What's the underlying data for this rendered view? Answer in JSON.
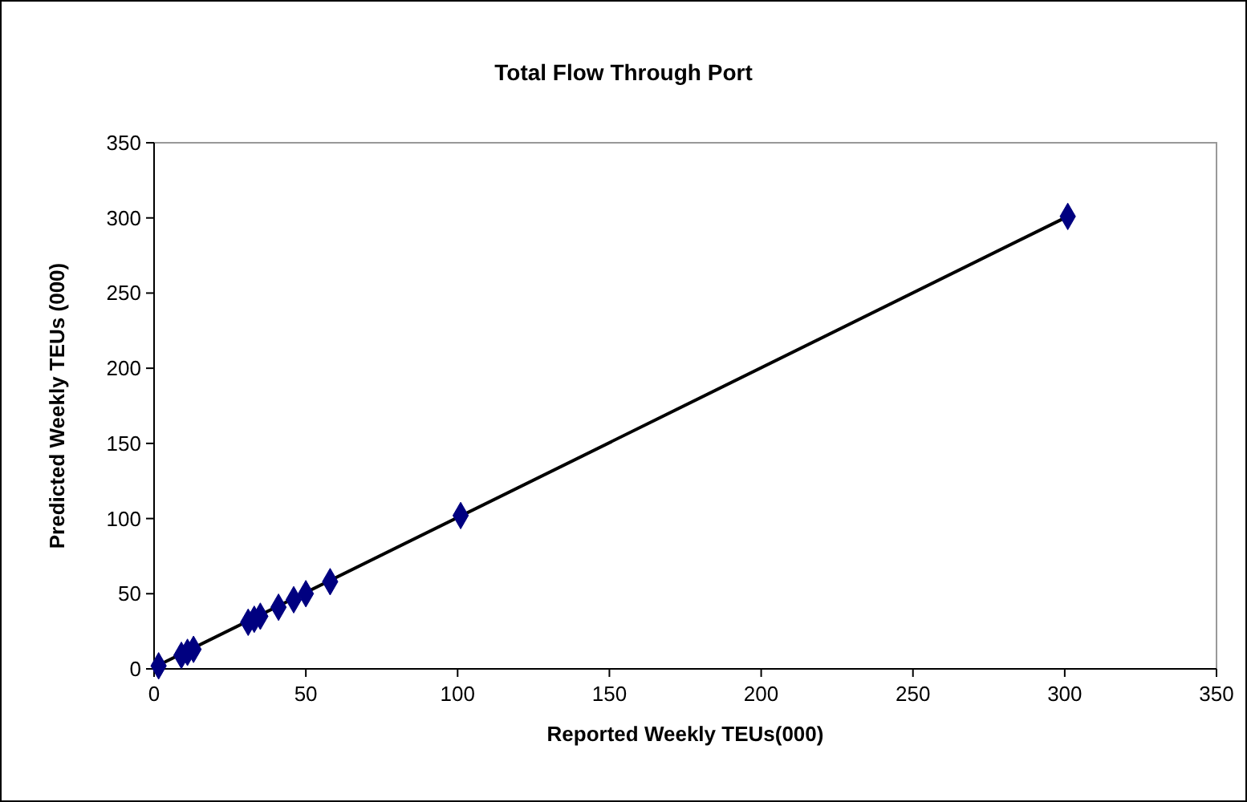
{
  "chart_data": {
    "type": "scatter",
    "title": "Total Flow Through Port",
    "xlabel": "Reported Weekly TEUs(000)",
    "ylabel": "Predicted Weekly TEUs (000)",
    "xlim": [
      0,
      350
    ],
    "ylim": [
      0,
      350
    ],
    "xticks": [
      0,
      50,
      100,
      150,
      200,
      250,
      300,
      350
    ],
    "yticks": [
      0,
      50,
      100,
      150,
      200,
      250,
      300,
      350
    ],
    "grid": false,
    "marker": "diamond",
    "series": [
      {
        "color": "#000080",
        "x": [
          1.5,
          9,
          11,
          13,
          31,
          33,
          35,
          41,
          46,
          50,
          58,
          101,
          301
        ],
        "values": [
          2,
          9,
          11,
          13,
          31,
          33,
          35,
          41,
          46,
          50,
          58,
          102,
          301
        ]
      },
      {
        "type": "line",
        "color": "#000000",
        "marker": "none",
        "line_style": "solid",
        "x": [
          1,
          301
        ],
        "values": [
          2,
          301
        ]
      }
    ]
  }
}
